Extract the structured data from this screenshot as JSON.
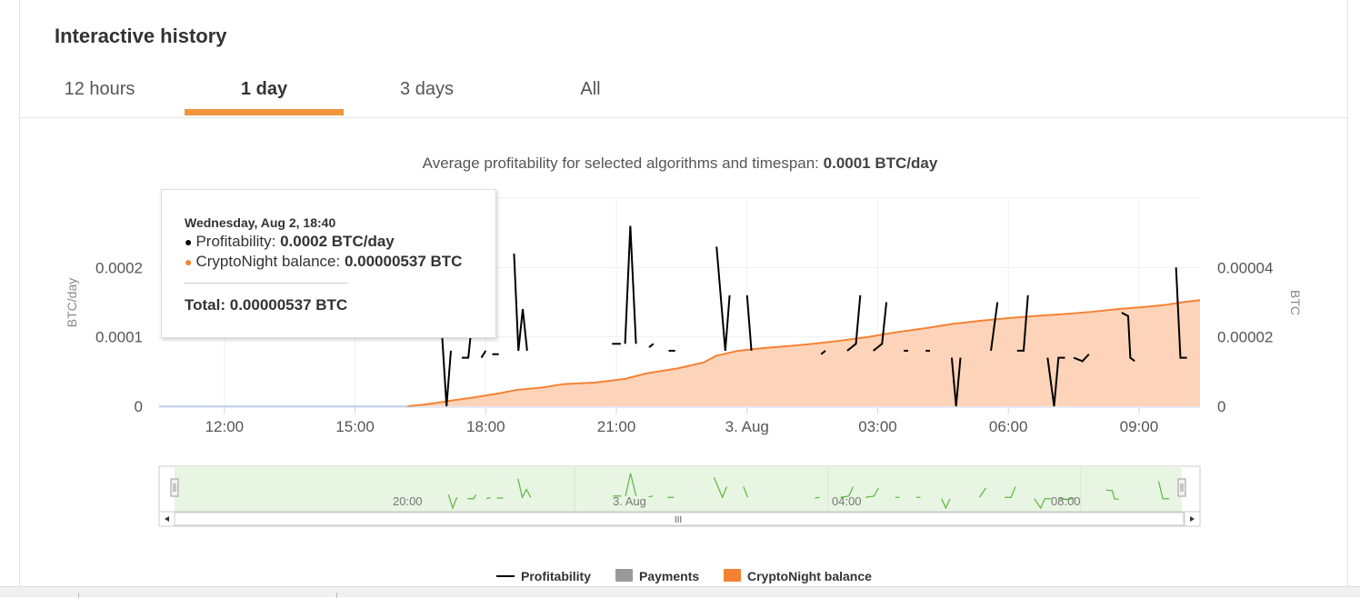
{
  "panel": {
    "title": "Interactive history"
  },
  "tabs": [
    {
      "label": "12 hours",
      "active": false
    },
    {
      "label": "1 day",
      "active": true
    },
    {
      "label": "3 days",
      "active": false
    },
    {
      "label": "All",
      "active": false
    }
  ],
  "subtitle": {
    "prefix": "Average profitability for selected algorithms and timespan: ",
    "value": "0.0001 BTC/day"
  },
  "tooltip": {
    "date": "Wednesday, Aug 2, 18:40",
    "profitability_label": "Profitability: ",
    "profitability_value": "0.0002 BTC/day",
    "balance_label": "CryptoNight balance: ",
    "balance_value": "0.00000537 BTC",
    "total_label": "Total: ",
    "total_value": "0.00000537 BTC"
  },
  "colors": {
    "accent": "#f0953c",
    "balance_line": "#f58233",
    "balance_fill": "#fdd4b9",
    "profitability": "#000000",
    "payments": "#999999",
    "navigator_fill": "#e8f5e3",
    "navigator_line": "#5cb83c"
  },
  "legend": [
    {
      "label": "Profitability",
      "swatch": "line",
      "color": "#000000"
    },
    {
      "label": "Payments",
      "swatch": "box",
      "color": "#999999"
    },
    {
      "label": "CryptoNight balance",
      "swatch": "box",
      "color": "#f58233"
    }
  ],
  "navigator": {
    "labels": [
      "20:00",
      "3. Aug",
      "04:00",
      "08:00"
    ],
    "handle_glyph": "III"
  },
  "chart_data": {
    "type": "line",
    "x_tick_labels": [
      "12:00",
      "15:00",
      "18:00",
      "21:00",
      "3. Aug",
      "03:00",
      "06:00",
      "09:00"
    ],
    "y_left": {
      "label": "BTC/day",
      "ticks": [
        "0",
        "0.0001",
        "0.0002"
      ],
      "range": [
        0,
        0.0003
      ]
    },
    "y_right": {
      "label": "BTC",
      "ticks": [
        "0",
        "0.00002",
        "0.00004"
      ],
      "range": [
        0,
        6e-05
      ]
    },
    "grid": true,
    "legend_position": "bottom",
    "x_range_hours": [
      10.5,
      34.4
    ],
    "series": [
      {
        "name": "CryptoNight balance",
        "axis": "right",
        "type": "area",
        "points": [
          [
            16.2,
            0
          ],
          [
            16.6,
            5e-07
          ],
          [
            17.0,
            1.2e-06
          ],
          [
            17.3,
            1.8e-06
          ],
          [
            17.7,
            2.5e-06
          ],
          [
            18.3,
            3.7e-06
          ],
          [
            18.7,
            4.7e-06
          ],
          [
            19.3,
            5.4e-06
          ],
          [
            19.8,
            6.4e-06
          ],
          [
            20.5,
            6.8e-06
          ],
          [
            21.2,
            7.9e-06
          ],
          [
            21.7,
            9.5e-06
          ],
          [
            22.4,
            1.09e-05
          ],
          [
            23.0,
            1.26e-05
          ],
          [
            23.3,
            1.46e-05
          ],
          [
            23.8,
            1.6e-05
          ],
          [
            24.4,
            1.68e-05
          ],
          [
            25.0,
            1.74e-05
          ],
          [
            25.6,
            1.81e-05
          ],
          [
            26.2,
            1.9e-05
          ],
          [
            26.8,
            2e-05
          ],
          [
            27.4,
            2.13e-05
          ],
          [
            28.1,
            2.25e-05
          ],
          [
            28.7,
            2.37e-05
          ],
          [
            29.4,
            2.47e-05
          ],
          [
            30.0,
            2.54e-05
          ],
          [
            30.6,
            2.6e-05
          ],
          [
            31.2,
            2.65e-05
          ],
          [
            31.9,
            2.72e-05
          ],
          [
            32.5,
            2.8e-05
          ],
          [
            33.1,
            2.86e-05
          ],
          [
            33.6,
            2.92e-05
          ],
          [
            34.0,
            3e-05
          ],
          [
            34.4,
            3.06e-05
          ]
        ]
      },
      {
        "name": "Profitability",
        "axis": "left",
        "type": "line",
        "segments": [
          [
            [
              17.0,
              0.0001
            ],
            [
              17.1,
              0.0
            ],
            [
              17.2,
              8e-05
            ]
          ],
          [
            [
              17.45,
              7e-05
            ],
            [
              17.6,
              7e-05
            ],
            [
              17.65,
              0.0001
            ]
          ],
          [
            [
              17.9,
              7e-05
            ],
            [
              18.0,
              8e-05
            ]
          ],
          [
            [
              18.15,
              7.5e-05
            ],
            [
              18.3,
              7.5e-05
            ]
          ],
          [
            [
              18.65,
              0.00022
            ],
            [
              18.75,
              8e-05
            ],
            [
              18.85,
              0.00014
            ],
            [
              18.95,
              8e-05
            ]
          ],
          [
            [
              20.9,
              9e-05
            ],
            [
              21.1,
              9e-05
            ]
          ],
          [
            [
              21.2,
              9e-05
            ],
            [
              21.32,
              0.00026
            ],
            [
              21.45,
              9e-05
            ]
          ],
          [
            [
              21.75,
              8.5e-05
            ],
            [
              21.85,
              9e-05
            ]
          ],
          [
            [
              22.2,
              8e-05
            ],
            [
              22.35,
              8e-05
            ]
          ],
          [
            [
              23.3,
              0.00023
            ],
            [
              23.5,
              8e-05
            ],
            [
              23.6,
              0.00016
            ]
          ],
          [
            [
              24.0,
              0.00016
            ],
            [
              24.1,
              8e-05
            ]
          ],
          [
            [
              25.7,
              7.5e-05
            ],
            [
              25.8,
              8e-05
            ]
          ],
          [
            [
              26.3,
              8e-05
            ],
            [
              26.5,
              9e-05
            ],
            [
              26.6,
              0.00016
            ]
          ],
          [
            [
              26.9,
              8e-05
            ],
            [
              27.1,
              9e-05
            ],
            [
              27.2,
              0.00015
            ]
          ],
          [
            [
              27.6,
              8e-05
            ],
            [
              27.7,
              8e-05
            ]
          ],
          [
            [
              28.1,
              8e-05
            ],
            [
              28.2,
              8e-05
            ]
          ],
          [
            [
              28.7,
              7e-05
            ],
            [
              28.8,
              0.0
            ],
            [
              28.9,
              7e-05
            ]
          ],
          [
            [
              29.6,
              8e-05
            ],
            [
              29.75,
              0.00015
            ]
          ],
          [
            [
              30.2,
              8e-05
            ],
            [
              30.35,
              8e-05
            ],
            [
              30.45,
              0.00016
            ]
          ],
          [
            [
              30.9,
              7e-05
            ],
            [
              31.05,
              0.0
            ],
            [
              31.15,
              7e-05
            ],
            [
              31.3,
              7e-05
            ]
          ],
          [
            [
              31.5,
              7e-05
            ],
            [
              31.7,
              6.5e-05
            ],
            [
              31.85,
              7.5e-05
            ]
          ],
          [
            [
              32.6,
              0.000135
            ],
            [
              32.75,
              0.00013
            ],
            [
              32.8,
              7e-05
            ],
            [
              32.9,
              6.5e-05
            ]
          ],
          [
            [
              33.85,
              0.0002
            ],
            [
              33.95,
              7e-05
            ],
            [
              34.1,
              7e-05
            ]
          ]
        ]
      }
    ]
  }
}
